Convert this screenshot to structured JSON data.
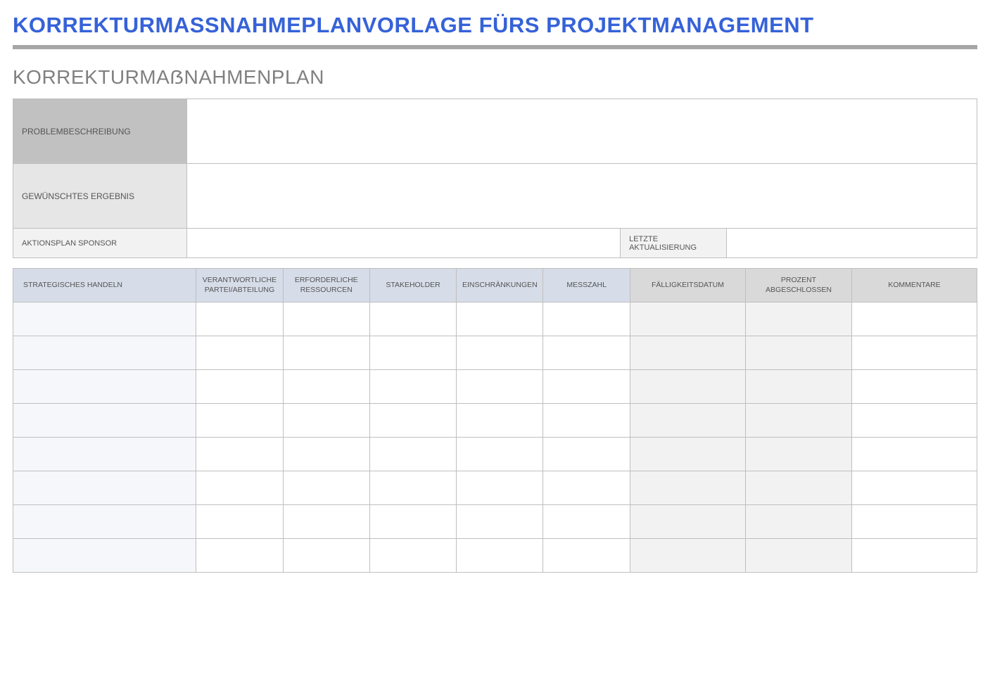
{
  "colors": {
    "title": "#3662d8",
    "divider": "#a6a6a6",
    "subtitle": "#808080",
    "border": "#bfbfbf",
    "meta_bg_dark": "#c1c1c1",
    "meta_bg_med": "#e6e6e6",
    "meta_bg_light": "#f2f2f2",
    "hdr_blue": "#d6dce8",
    "hdr_gray": "#d9d9d9",
    "cell_blue": "#f5f7fa",
    "cell_gray": "#f2f2f2"
  },
  "main_title": "KORREKTURMASSNAHMEPLANVORLAGE FÜRS PROJEKTMANAGEMENT",
  "sub_title": "KORREKTURMAẞNAHMENPLAN",
  "meta": {
    "problem_label": "PROBLEMBESCHREIBUNG",
    "problem_value": "",
    "outcome_label": "GEWÜNSCHTES ERGEBNIS",
    "outcome_value": "",
    "sponsor_label": "AKTIONSPLAN SPONSOR",
    "sponsor_value": "",
    "updated_label": "LETZTE AKTUALISIERUNG",
    "updated_value": ""
  },
  "action_table": {
    "col_widths_pct": [
      19,
      9,
      9,
      9,
      9,
      9,
      12,
      11,
      13
    ],
    "header_colors": [
      "blue",
      "blue",
      "blue",
      "blue",
      "blue",
      "blue",
      "gray",
      "gray",
      "gray"
    ],
    "body_colors": [
      "blue",
      "white",
      "white",
      "white",
      "white",
      "white",
      "gray",
      "gray",
      "white"
    ],
    "headers": [
      "STRATEGISCHES HANDELN",
      "VERANTWORTLICHE PARTEI/ABTEILUNG",
      "ERFORDERLICHE RESSOURCEN",
      "STAKEHOLDER",
      "EINSCHRÄNKUNGEN",
      "MESSZAHL",
      "FÄLLIGKEITSDATUM",
      "PROZENT ABGESCHLOSSEN",
      "KOMMENTARE"
    ],
    "rows": [
      [
        "",
        "",
        "",
        "",
        "",
        "",
        "",
        "",
        ""
      ],
      [
        "",
        "",
        "",
        "",
        "",
        "",
        "",
        "",
        ""
      ],
      [
        "",
        "",
        "",
        "",
        "",
        "",
        "",
        "",
        ""
      ],
      [
        "",
        "",
        "",
        "",
        "",
        "",
        "",
        "",
        ""
      ],
      [
        "",
        "",
        "",
        "",
        "",
        "",
        "",
        "",
        ""
      ],
      [
        "",
        "",
        "",
        "",
        "",
        "",
        "",
        "",
        ""
      ],
      [
        "",
        "",
        "",
        "",
        "",
        "",
        "",
        "",
        ""
      ],
      [
        "",
        "",
        "",
        "",
        "",
        "",
        "",
        "",
        ""
      ]
    ]
  }
}
